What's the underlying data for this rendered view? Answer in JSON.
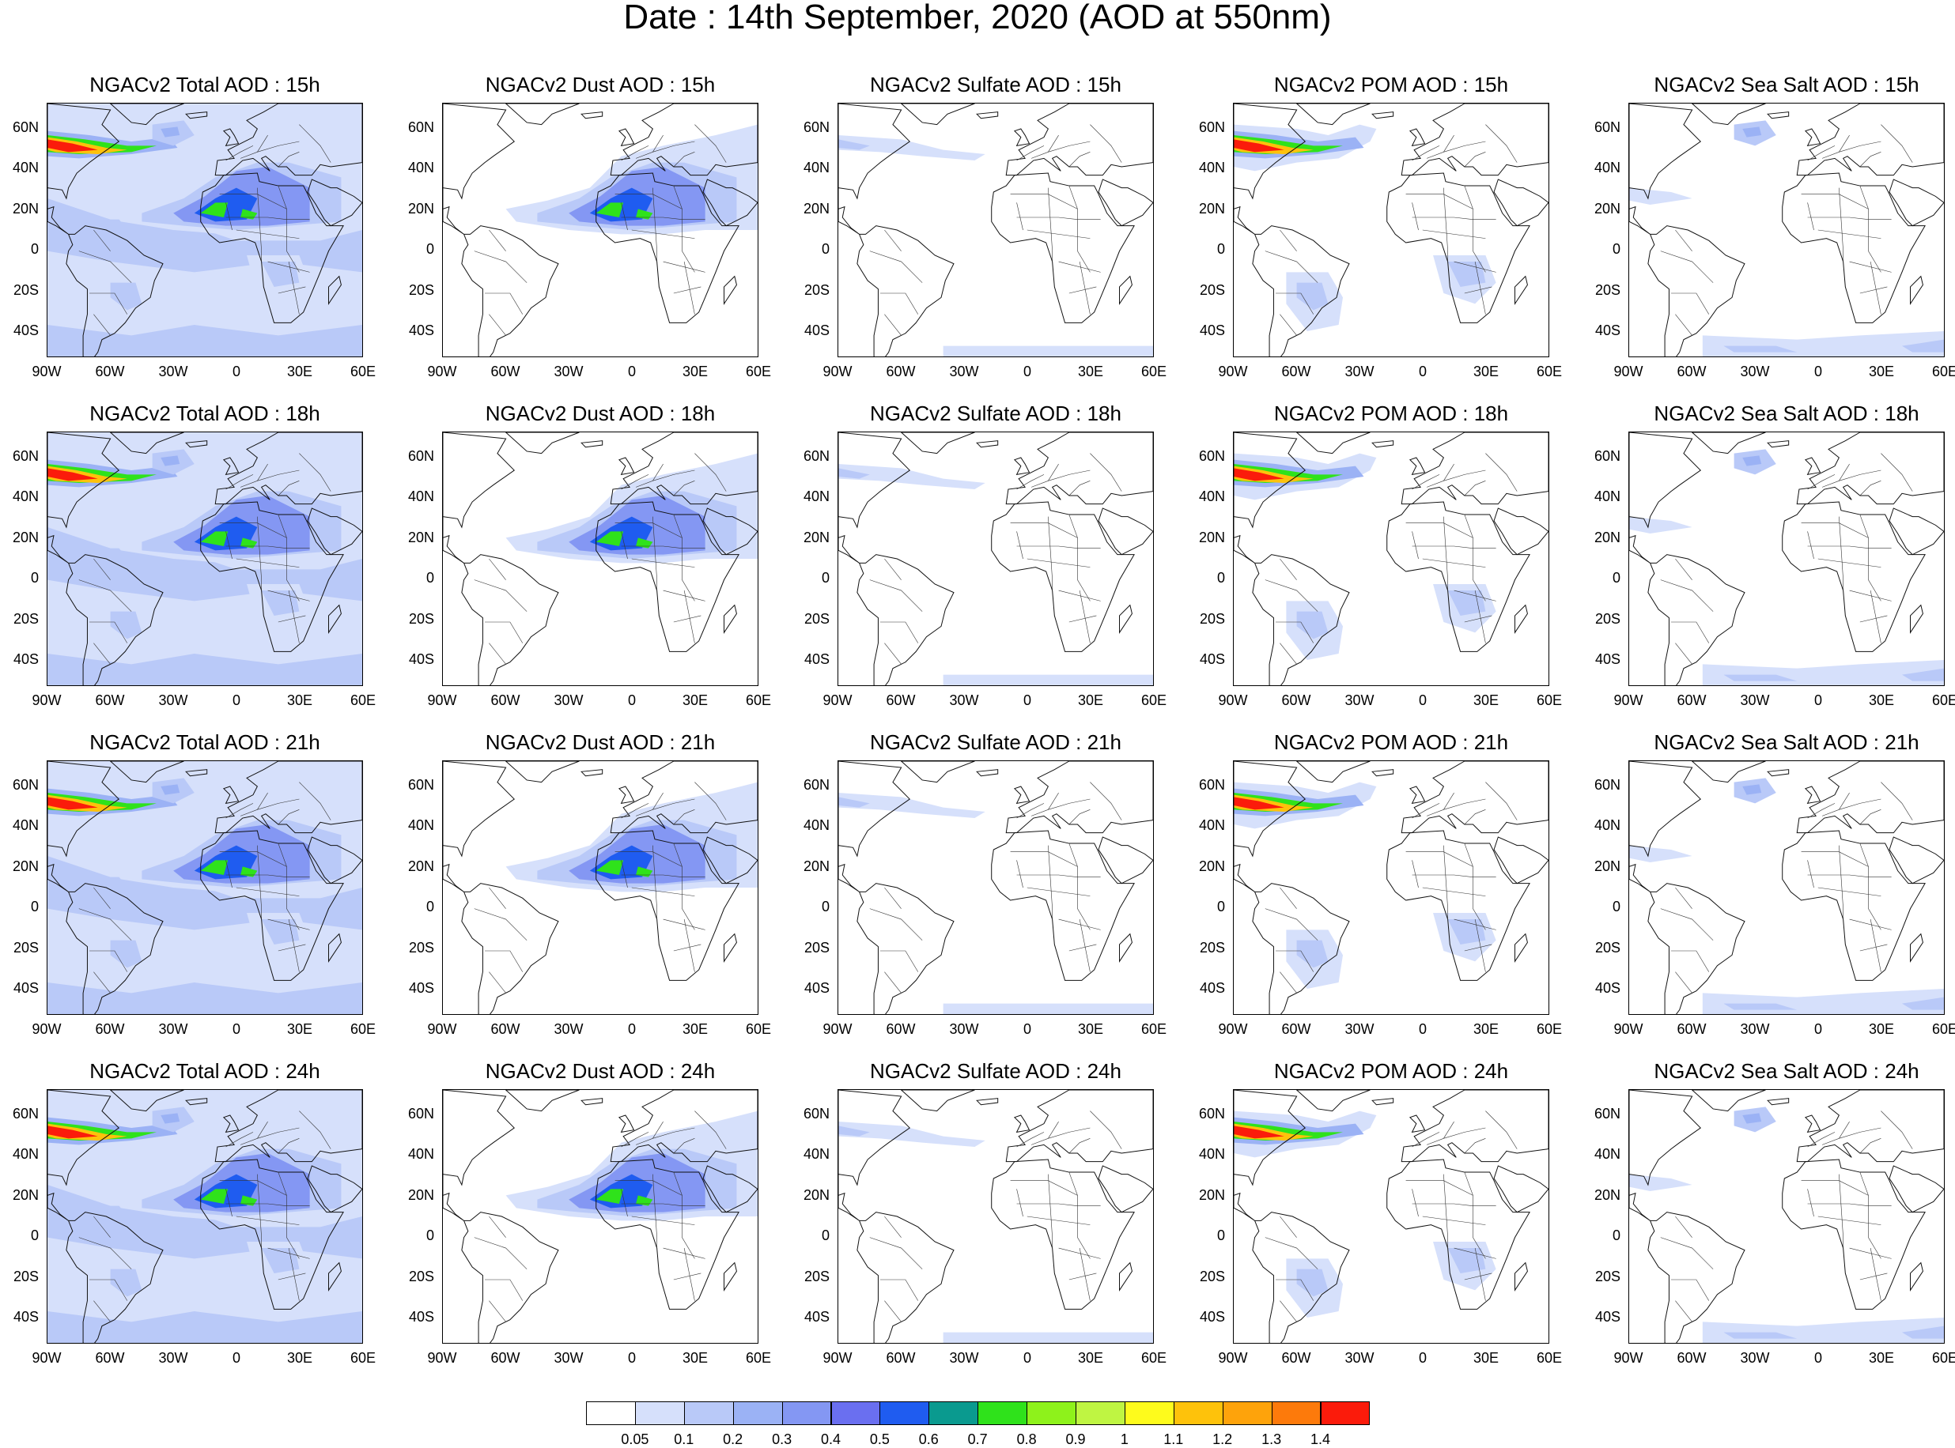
{
  "title": "Date : 14th September, 2020 (AOD at 550nm)",
  "rows": [
    {
      "hour": "15h",
      "panels": [
        {
          "type": "total",
          "title": "NGACv2 Total AOD : 15h"
        },
        {
          "type": "dust",
          "title": "NGACv2 Dust AOD : 15h"
        },
        {
          "type": "sulfate",
          "title": "NGACv2 Sulfate AOD : 15h"
        },
        {
          "type": "pom",
          "title": "NGACv2 POM AOD : 15h"
        },
        {
          "type": "seasalt",
          "title": "NGACv2 Sea Salt AOD : 15h"
        }
      ]
    },
    {
      "hour": "18h",
      "panels": [
        {
          "type": "total",
          "title": "NGACv2 Total AOD : 18h"
        },
        {
          "type": "dust",
          "title": "NGACv2 Dust AOD : 18h"
        },
        {
          "type": "sulfate",
          "title": "NGACv2 Sulfate AOD : 18h"
        },
        {
          "type": "pom",
          "title": "NGACv2 POM AOD : 18h"
        },
        {
          "type": "seasalt",
          "title": "NGACv2 Sea Salt AOD : 18h"
        }
      ]
    },
    {
      "hour": "21h",
      "panels": [
        {
          "type": "total",
          "title": "NGACv2 Total AOD : 21h"
        },
        {
          "type": "dust",
          "title": "NGACv2 Dust AOD : 21h"
        },
        {
          "type": "sulfate",
          "title": "NGACv2 Sulfate AOD : 21h"
        },
        {
          "type": "pom",
          "title": "NGACv2 POM AOD : 21h"
        },
        {
          "type": "seasalt",
          "title": "NGACv2 Sea Salt AOD : 21h"
        }
      ]
    },
    {
      "hour": "24h",
      "panels": [
        {
          "type": "total",
          "title": "NGACv2 Total AOD : 24h"
        },
        {
          "type": "dust",
          "title": "NGACv2 Dust AOD : 24h"
        },
        {
          "type": "sulfate",
          "title": "NGACv2 Sulfate AOD : 24h"
        },
        {
          "type": "pom",
          "title": "NGACv2 POM AOD : 24h"
        },
        {
          "type": "seasalt",
          "title": "NGACv2 Sea Salt  AOD : 24h"
        }
      ]
    }
  ],
  "lat_labels": [
    "60N",
    "40N",
    "20N",
    "0",
    "20S",
    "40S"
  ],
  "lon_labels": [
    "90W",
    "60W",
    "30W",
    "0",
    "30E",
    "60E"
  ],
  "colorbar": {
    "ticks": [
      "0.05",
      "0.1",
      "0.2",
      "0.3",
      "0.4",
      "0.5",
      "0.6",
      "0.7",
      "0.8",
      "0.9",
      "1",
      "1.1",
      "1.2",
      "1.3",
      "1.4"
    ],
    "colors": [
      "#ffffff",
      "#d6e0fb",
      "#b9c9f8",
      "#9bb2f5",
      "#8497f3",
      "#6a6ff0",
      "#1f5cf0",
      "#0a9a8f",
      "#2fe21b",
      "#8ef21b",
      "#bff542",
      "#fefb1c",
      "#fec20b",
      "#fea30b",
      "#fd7a0b",
      "#fb1b0b"
    ]
  }
}
